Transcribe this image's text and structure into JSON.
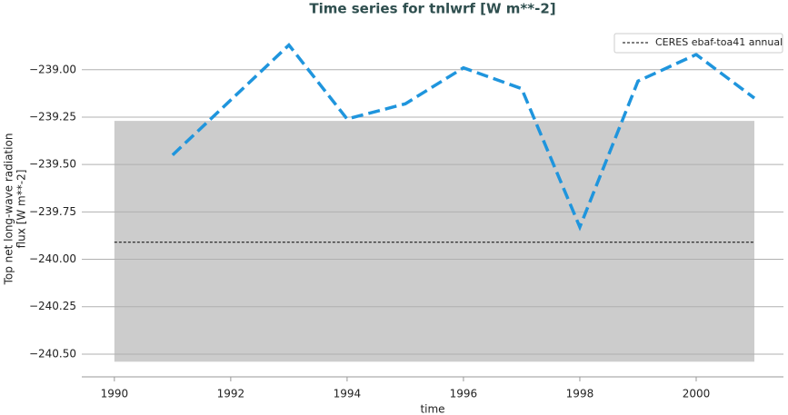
{
  "chart_data": {
    "type": "line",
    "title": "Time series for tnlwrf [W m**-2]",
    "x_label": "time",
    "y_label": [
      "Top net long-wave radiation",
      "flux [W m**-2]"
    ],
    "x": [
      1991,
      1992,
      1993,
      1994,
      1995,
      1996,
      1997,
      1998,
      1999,
      2000,
      2001
    ],
    "series": [
      {
        "color": "#1f95dd",
        "values": [
          -239.45,
          -239.16,
          -238.87,
          -239.26,
          -239.18,
          -238.99,
          -239.1,
          -239.83,
          -239.06,
          -238.92,
          -239.15
        ]
      }
    ],
    "reference": {
      "name": "CERES ebaf-toa41 annual",
      "color": "#000000",
      "value": -239.91,
      "range": [
        -240.54,
        -239.27
      ],
      "x_range": [
        1990,
        2001
      ],
      "band_color": "#cccccc"
    },
    "xlim": [
      1989.44,
      2001.5
    ],
    "ylim": [
      -240.62,
      -238.8
    ],
    "xticks": [
      1990,
      1992,
      1994,
      1996,
      1998,
      2000
    ],
    "yticks": [
      {
        "value": -239.0,
        "label": "−239.00"
      },
      {
        "value": -239.25,
        "label": "−239.25"
      },
      {
        "value": -239.5,
        "label": "−239.50"
      },
      {
        "value": -239.75,
        "label": "−239.75"
      },
      {
        "value": -240.0,
        "label": "−240.00"
      },
      {
        "value": -240.25,
        "label": "−240.25"
      },
      {
        "value": -240.5,
        "label": "−240.50"
      }
    ],
    "grid": true,
    "legend": "upper right"
  }
}
